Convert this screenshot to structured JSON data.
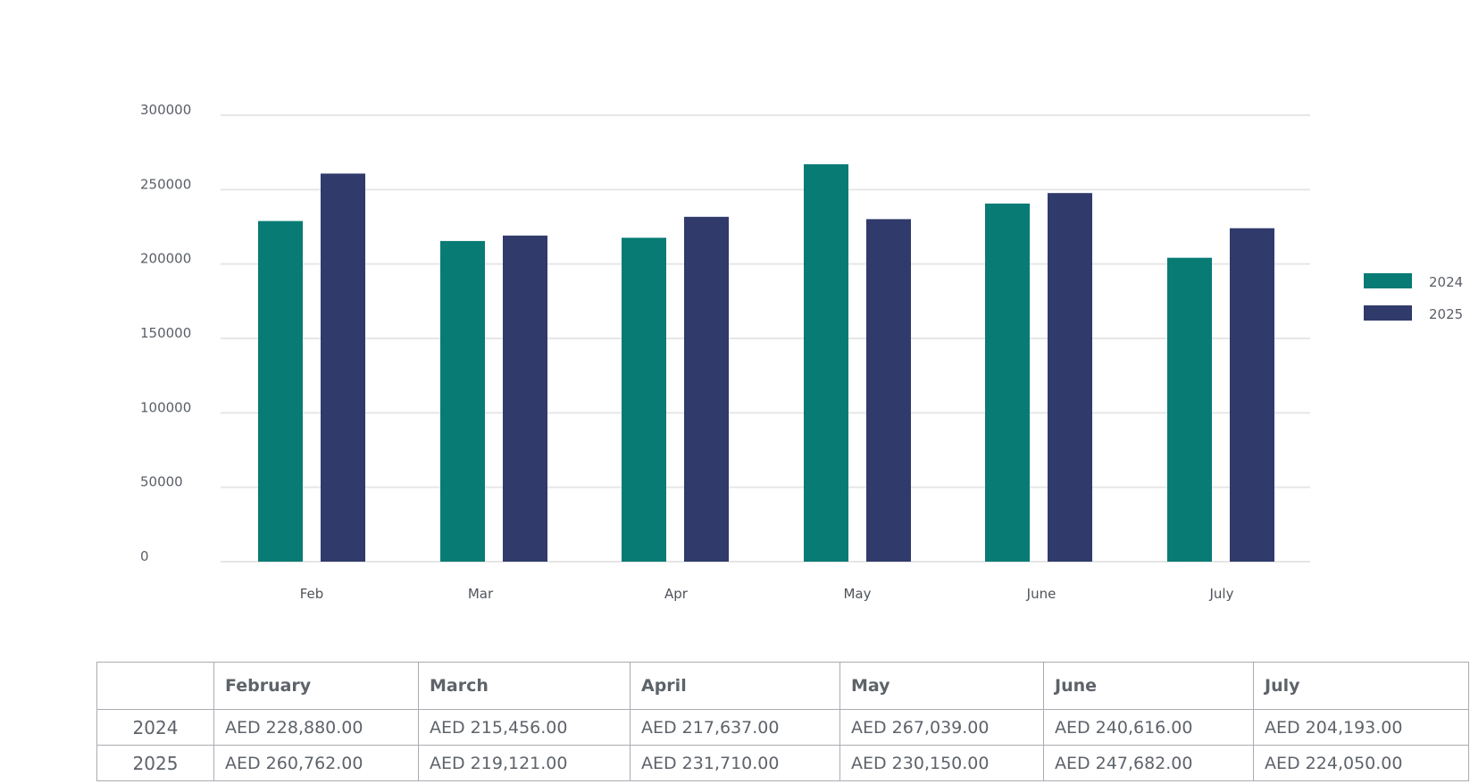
{
  "chart_data": {
    "type": "bar",
    "categories": [
      "Feb",
      "Mar",
      "Apr",
      "May",
      "June",
      "July"
    ],
    "series": [
      {
        "name": "2024",
        "color": "#077b74",
        "values": [
          228880,
          215456,
          217637,
          267039,
          240616,
          204193
        ]
      },
      {
        "name": "2025",
        "color": "#303a6b",
        "values": [
          260762,
          219121,
          231710,
          230150,
          247682,
          224050
        ]
      }
    ],
    "y_ticks": [
      "0",
      "50000",
      "100000",
      "150000",
      "200000",
      "250000",
      "300000"
    ],
    "ylim": [
      0,
      300000
    ],
    "grid": true,
    "legend_position": "right"
  },
  "table": {
    "headers": [
      "",
      "February",
      "March",
      "April",
      "May",
      "June",
      "July"
    ],
    "rows": [
      {
        "year": "2024",
        "cells": [
          "AED 228,880.00",
          "AED 215,456.00",
          "AED 217,637.00",
          "AED 267,039.00",
          "AED 240,616.00",
          "AED 204,193.00"
        ]
      },
      {
        "year": "2025",
        "cells": [
          "AED 260,762.00",
          "AED 219,121.00",
          "AED 231,710.00",
          "AED 230,150.00",
          "AED 247,682.00",
          "AED 224,050.00"
        ]
      }
    ]
  }
}
